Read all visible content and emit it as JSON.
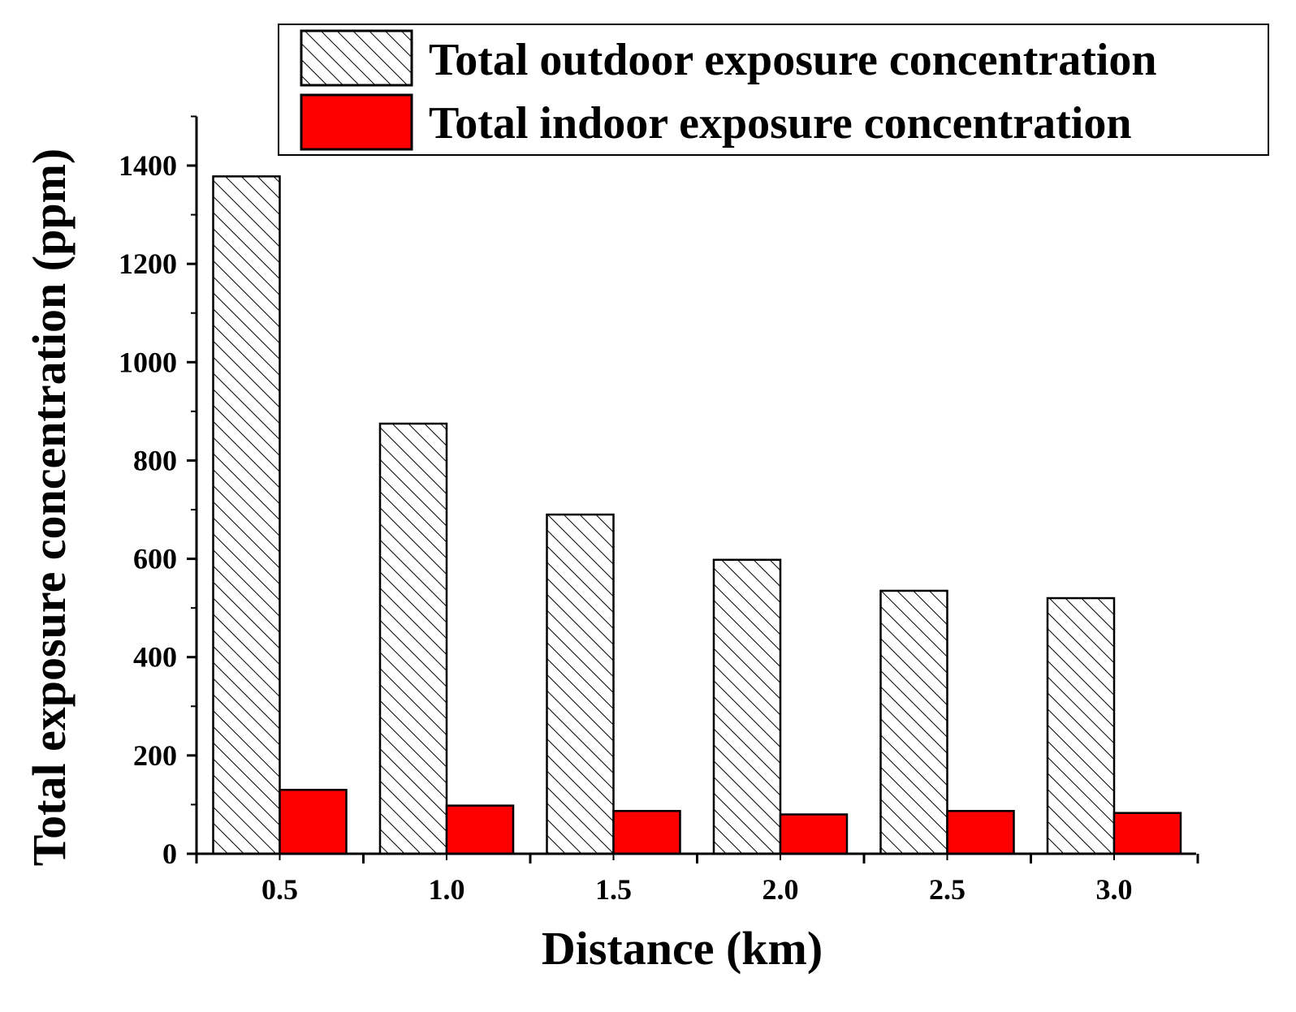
{
  "chart_data": {
    "type": "bar",
    "xlabel": "Distance (km)",
    "ylabel": "Total exposure concentration (ppm)",
    "categories": [
      "0.5",
      "1.0",
      "1.5",
      "2.0",
      "2.5",
      "3.0"
    ],
    "ylim": [
      0,
      1500
    ],
    "yticks": [
      "0",
      "200",
      "400",
      "600",
      "800",
      "1000",
      "1200",
      "1400"
    ],
    "series": [
      {
        "name": "Total outdoor exposure concentration",
        "values": [
          1378,
          875,
          690,
          598,
          535,
          520
        ],
        "fill": "hatch",
        "color": "#ffffff"
      },
      {
        "name": "Total indoor exposure concentration",
        "values": [
          130,
          98,
          87,
          80,
          87,
          83
        ],
        "fill": "solid",
        "color": "#ff0000"
      }
    ],
    "legend_position": "top-right",
    "grid": false
  }
}
